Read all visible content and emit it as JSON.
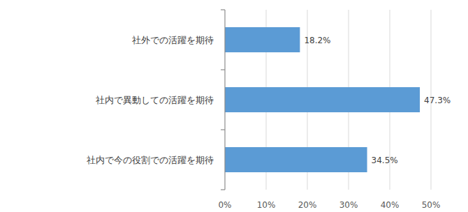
{
  "chart_data": {
    "type": "bar",
    "orientation": "horizontal",
    "categories": [
      "社外での活躍を期待",
      "社内で異動しての活躍を期待",
      "社内で今の役割での活躍を期待"
    ],
    "values": [
      18.2,
      47.3,
      34.5
    ],
    "value_labels": [
      "18.2%",
      "47.3%",
      "34.5%"
    ],
    "color": "#5b9bd5",
    "xlim": [
      0,
      50
    ],
    "xticks": [
      {
        "value": 0,
        "label": "0%"
      },
      {
        "value": 10,
        "label": "10%"
      },
      {
        "value": 20,
        "label": "20%"
      },
      {
        "value": 30,
        "label": "30%"
      },
      {
        "value": 40,
        "label": "40%"
      },
      {
        "value": 50,
        "label": "50%"
      }
    ],
    "grid": true,
    "data_labels": true
  }
}
